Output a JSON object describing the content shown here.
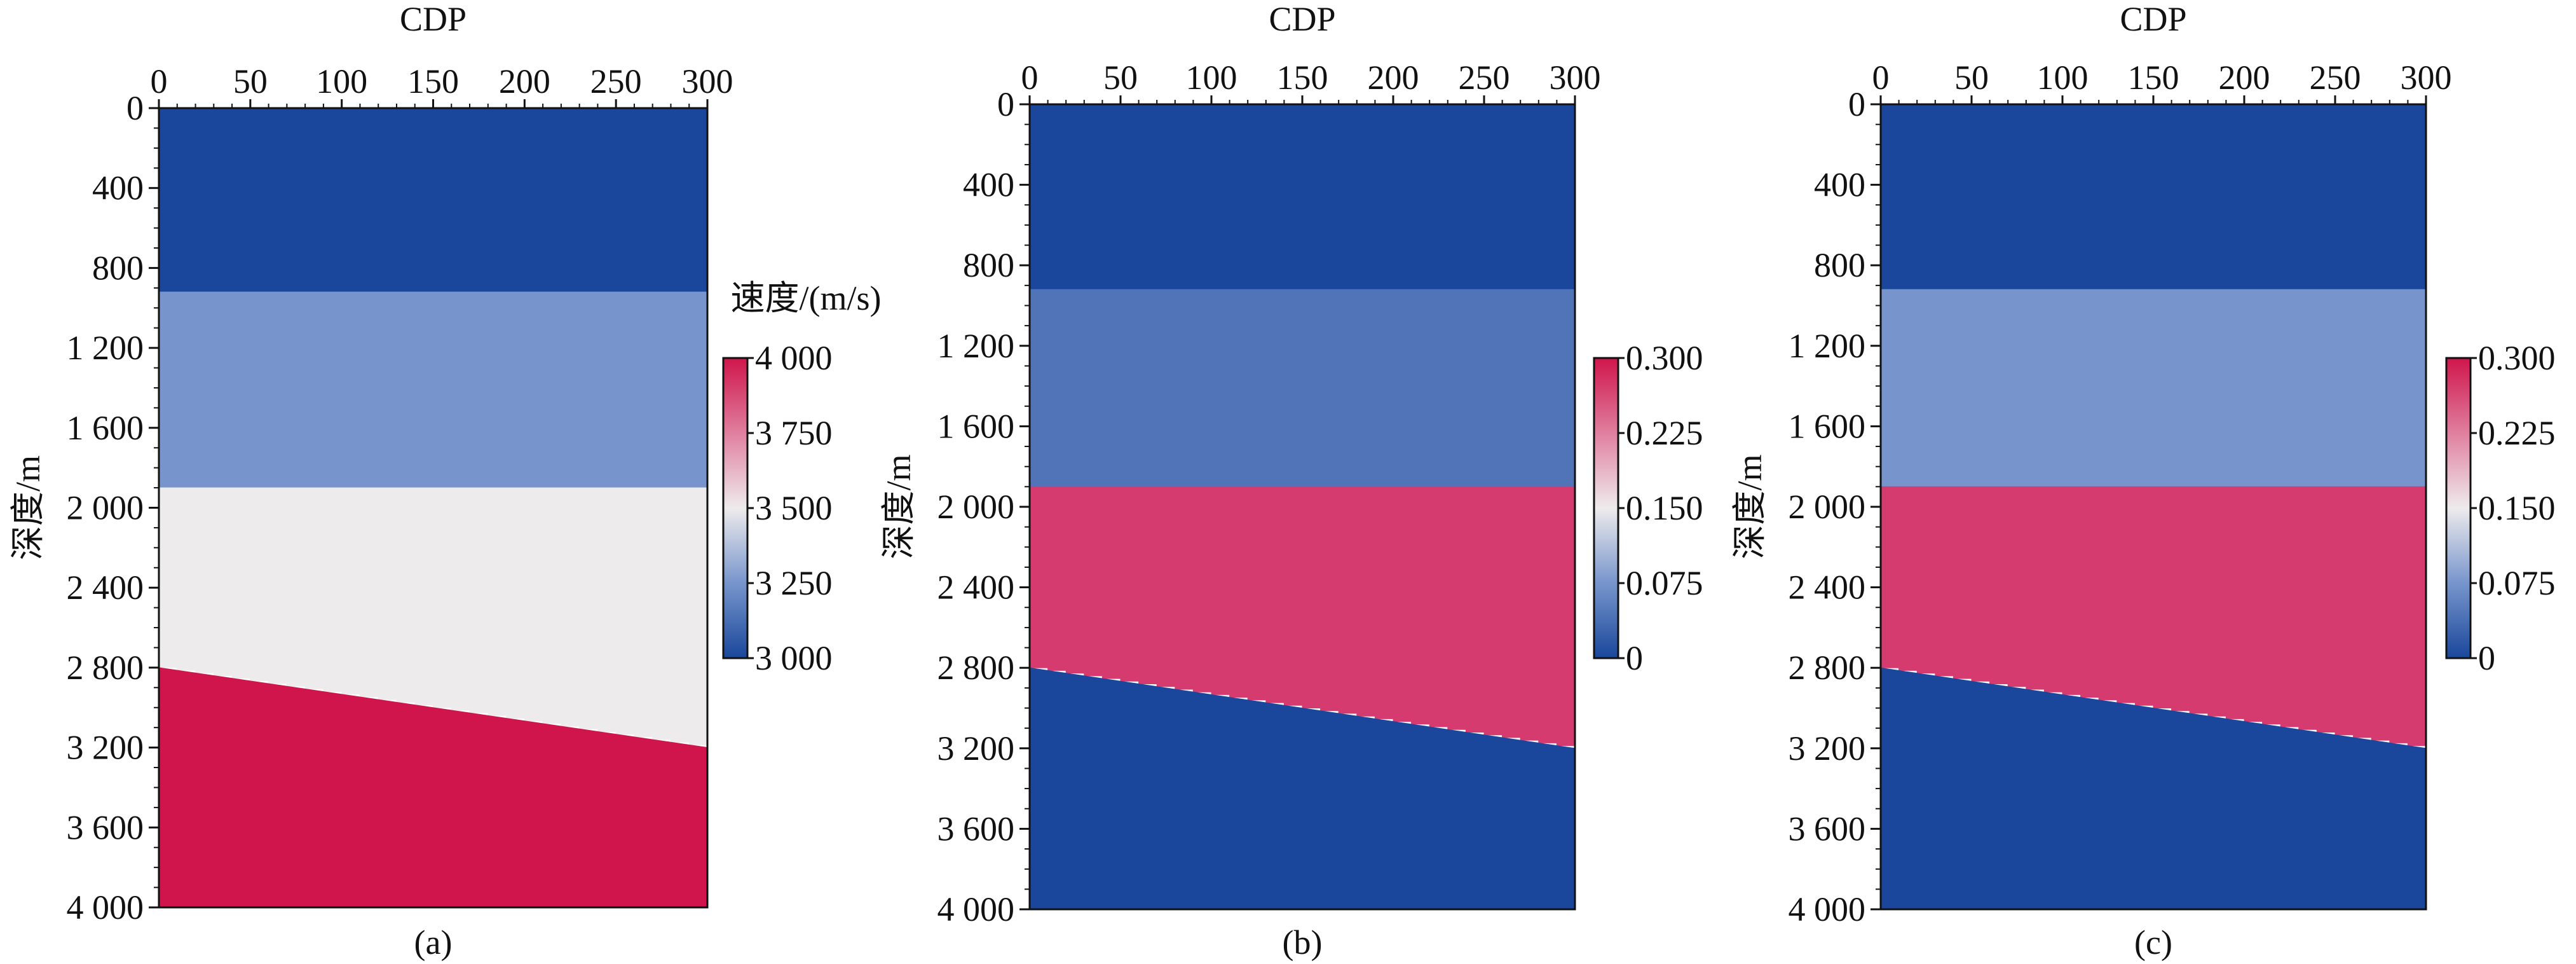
{
  "chart_data": [
    {
      "type": "heatmap",
      "caption": "(a)",
      "xlabel": "CDP",
      "ylabel": "深度/m",
      "xlim": [
        0,
        300
      ],
      "ylim": [
        0,
        4000
      ],
      "x_ticks": [
        "0",
        "50",
        "100",
        "150",
        "200",
        "250",
        "300"
      ],
      "y_ticks": [
        "0",
        "400",
        "800",
        "1 200",
        "1 600",
        "2 000",
        "2 400",
        "2 800",
        "3 200",
        "3 600",
        "4 000"
      ],
      "colorbar": {
        "title": "速度/(m/s)",
        "range": [
          3000,
          4000
        ],
        "ticks": [
          "4 000",
          "3 750",
          "3 500",
          "3 250",
          "3 000"
        ]
      },
      "layers": [
        {
          "top_left": 0,
          "top_right": 0,
          "value": 3000,
          "color": "#1a479b"
        },
        {
          "top_left": 920,
          "top_right": 920,
          "value": 3250,
          "color": "#7795cc"
        },
        {
          "top_left": 1900,
          "top_right": 1900,
          "value": 3500,
          "color": "#eeebec"
        },
        {
          "top_left": 2800,
          "top_right": 3200,
          "value": 4000,
          "color": "#cf154b"
        }
      ]
    },
    {
      "type": "heatmap",
      "caption": "(b)",
      "xlabel": "CDP",
      "ylabel": "深度/m",
      "xlim": [
        0,
        300
      ],
      "ylim": [
        0,
        4000
      ],
      "x_ticks": [
        "0",
        "50",
        "100",
        "150",
        "200",
        "250",
        "300"
      ],
      "y_ticks": [
        "0",
        "400",
        "800",
        "1 200",
        "1 600",
        "2 000",
        "2 400",
        "2 800",
        "3 200",
        "3 600",
        "4 000"
      ],
      "colorbar": {
        "title": "",
        "range": [
          0,
          0.3
        ],
        "ticks": [
          "0.300",
          "0.225",
          "0.150",
          "0.075",
          "0"
        ]
      },
      "layers": [
        {
          "top_left": 0,
          "top_right": 0,
          "value": 0,
          "color": "#1a479b"
        },
        {
          "top_left": 920,
          "top_right": 920,
          "value": 0.05,
          "color": "#5174b8"
        },
        {
          "top_left": 1900,
          "top_right": 1900,
          "value": 0.27,
          "color": "#d63b6f"
        },
        {
          "top_left": 2800,
          "top_right": 3200,
          "value": 0,
          "color": "#1a479b"
        }
      ]
    },
    {
      "type": "heatmap",
      "caption": "(c)",
      "xlabel": "CDP",
      "ylabel": "深度/m",
      "xlim": [
        0,
        300
      ],
      "ylim": [
        0,
        4000
      ],
      "x_ticks": [
        "0",
        "50",
        "100",
        "150",
        "200",
        "250",
        "300"
      ],
      "y_ticks": [
        "0",
        "400",
        "800",
        "1 200",
        "1 600",
        "2 000",
        "2 400",
        "2 800",
        "3 200",
        "3 600",
        "4 000"
      ],
      "colorbar": {
        "title": "",
        "range": [
          0,
          0.3
        ],
        "ticks": [
          "0.300",
          "0.225",
          "0.150",
          "0.075",
          "0"
        ]
      },
      "layers": [
        {
          "top_left": 0,
          "top_right": 0,
          "value": 0,
          "color": "#1a479b"
        },
        {
          "top_left": 920,
          "top_right": 920,
          "value": 0.1,
          "color": "#7795cc"
        },
        {
          "top_left": 1900,
          "top_right": 1900,
          "value": 0.27,
          "color": "#d63b6f"
        },
        {
          "top_left": 2800,
          "top_right": 3200,
          "value": 0,
          "color": "#1a479b"
        }
      ]
    }
  ]
}
